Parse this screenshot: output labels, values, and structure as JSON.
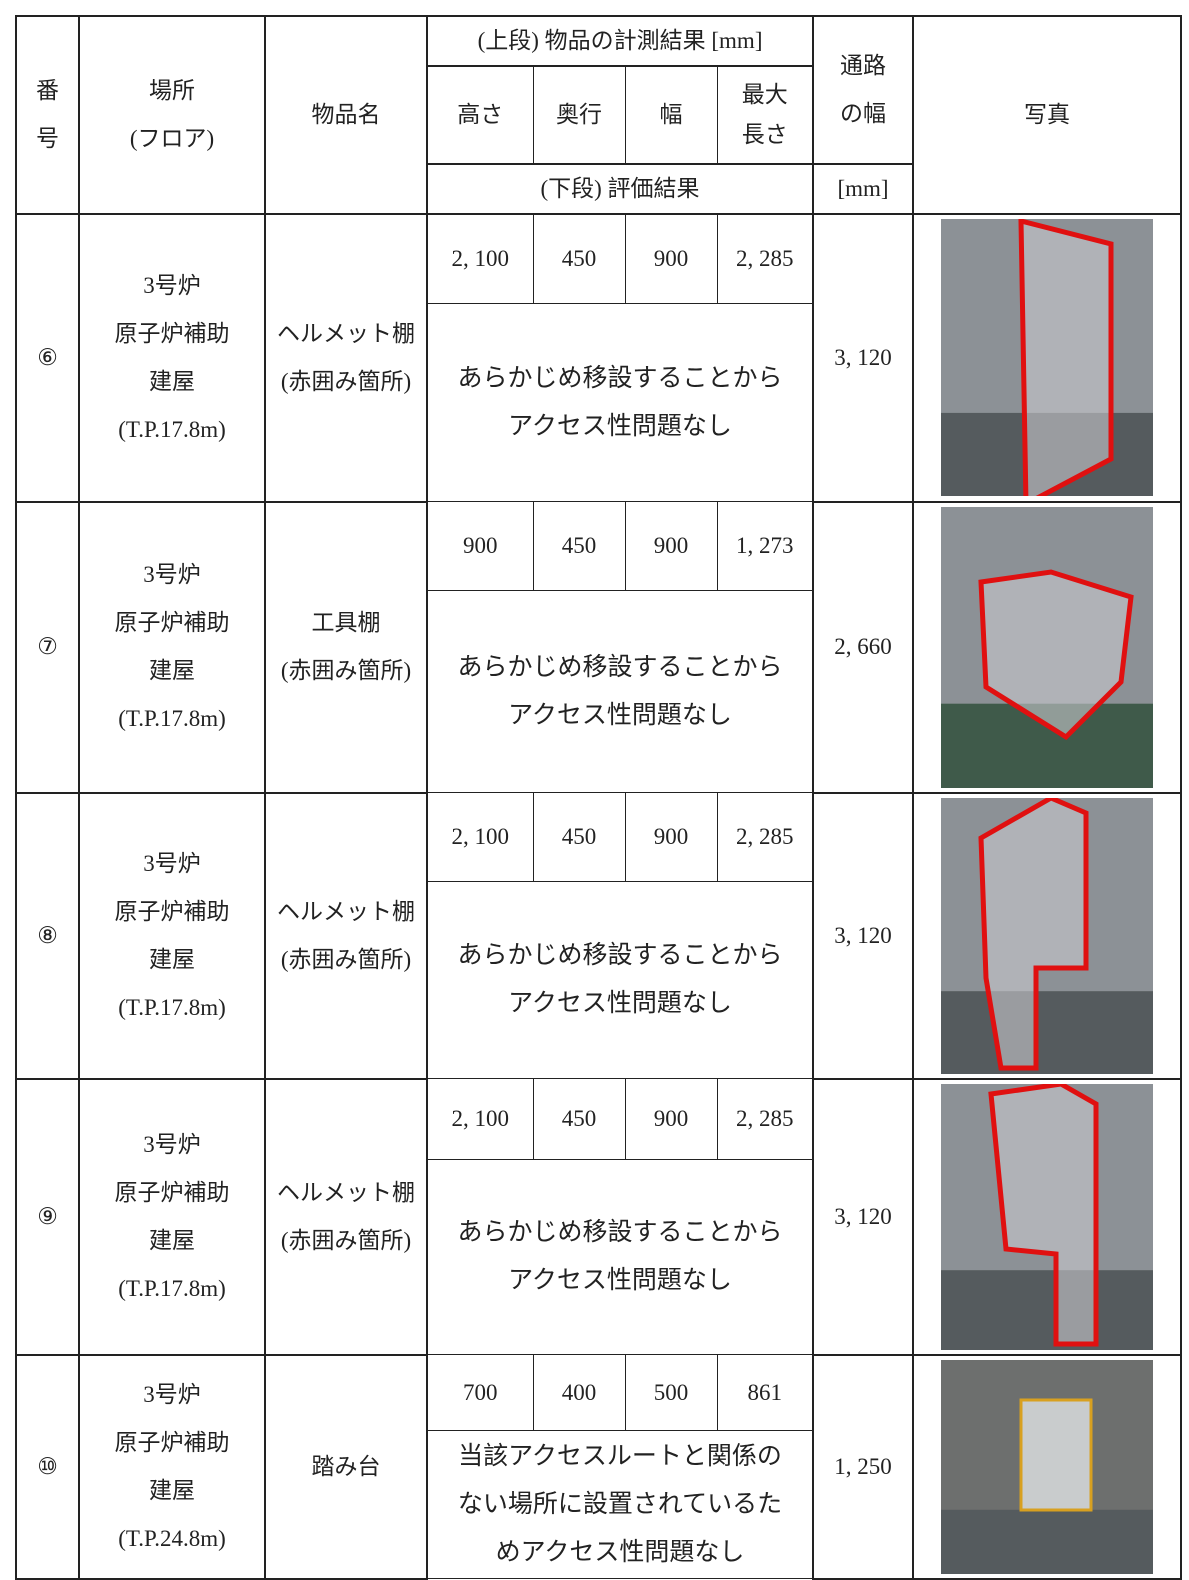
{
  "header": {
    "number": [
      "番",
      "号"
    ],
    "location": [
      "場所",
      "(フロア)"
    ],
    "item": "物品名",
    "upper": "(上段) 物品の計測結果 [mm]",
    "height": "高さ",
    "depth": "奥行",
    "width": "幅",
    "max_length": [
      "最大",
      "長さ"
    ],
    "passage": [
      "通路",
      "の幅"
    ],
    "passage_unit": "[mm]",
    "photo": "写真",
    "lower": "(下段) 評価結果"
  },
  "rows": [
    {
      "number": "⑥",
      "location": [
        "3号炉",
        "原子炉補助",
        "建屋",
        "(T.P.17.8m)"
      ],
      "item": [
        "ヘルメット棚",
        "(赤囲み箇所)"
      ],
      "height": "2, 100",
      "depth": "450",
      "width": "900",
      "max_length": "2, 285",
      "result": [
        "あらかじめ移設することから",
        "アクセス性問題なし"
      ],
      "passage": "3, 120"
    },
    {
      "number": "⑦",
      "location": [
        "3号炉",
        "原子炉補助",
        "建屋",
        "(T.P.17.8m)"
      ],
      "item": [
        "工具棚",
        "(赤囲み箇所)"
      ],
      "height": "900",
      "depth": "450",
      "width": "900",
      "max_length": "1, 273",
      "result": [
        "あらかじめ移設することから",
        "アクセス性問題なし"
      ],
      "passage": "2, 660"
    },
    {
      "number": "⑧",
      "location": [
        "3号炉",
        "原子炉補助",
        "建屋",
        "(T.P.17.8m)"
      ],
      "item": [
        "ヘルメット棚",
        "(赤囲み箇所)"
      ],
      "height": "2, 100",
      "depth": "450",
      "width": "900",
      "max_length": "2, 285",
      "result": [
        "あらかじめ移設することから",
        "アクセス性問題なし"
      ],
      "passage": "3, 120"
    },
    {
      "number": "⑨",
      "location": [
        "3号炉",
        "原子炉補助",
        "建屋",
        "(T.P.17.8m)"
      ],
      "item": [
        "ヘルメット棚",
        "(赤囲み箇所)"
      ],
      "height": "2, 100",
      "depth": "450",
      "width": "900",
      "max_length": "2, 285",
      "result": [
        "あらかじめ移設することから",
        "アクセス性問題なし"
      ],
      "passage": "3, 120"
    },
    {
      "number": "⑩",
      "location": [
        "3号炉",
        "原子炉補助",
        "建屋",
        "(T.P.24.8m)"
      ],
      "item": [
        "踏み台"
      ],
      "height": "700",
      "depth": "400",
      "width": "500",
      "max_length": "861",
      "result": [
        "当該アクセスルートと関係の",
        "ない場所に設置されているた",
        "めアクセス性問題なし"
      ],
      "passage": "1, 250"
    }
  ]
}
